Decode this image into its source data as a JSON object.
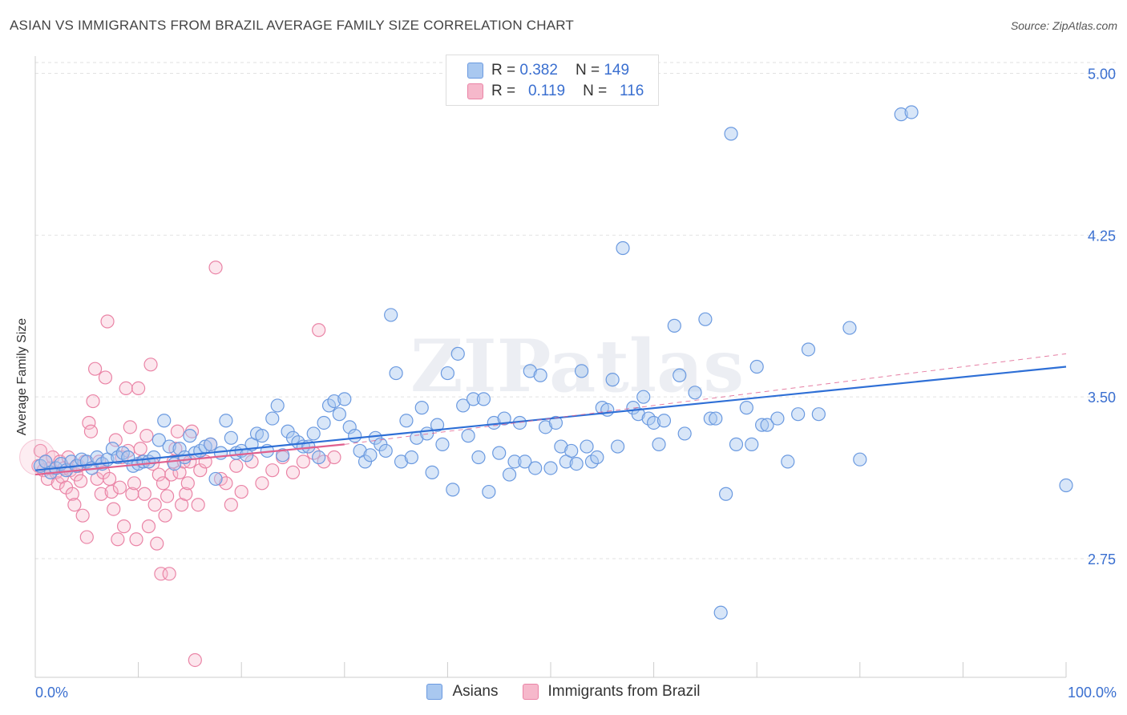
{
  "header": {
    "title": "ASIAN VS IMMIGRANTS FROM BRAZIL AVERAGE FAMILY SIZE CORRELATION CHART",
    "source": "Source: ZipAtlas.com"
  },
  "legend": {
    "rows": [
      {
        "r_label": "R =",
        "r_value": "0.382",
        "n_label": "N =",
        "n_value": "149"
      },
      {
        "r_label": "R =",
        "r_value": "0.119",
        "n_label": "N =",
        "n_value": "116"
      }
    ]
  },
  "colors": {
    "blue_fill": "#a9c8f0",
    "blue_stroke": "#6b9ae0",
    "blue_line": "#2e6fd6",
    "pink_fill": "#f6b8cb",
    "pink_stroke": "#ea84a6",
    "pink_line": "#e0608e",
    "axis_text": "#3a6fd0"
  },
  "chart_data": {
    "type": "scatter",
    "title": "ASIAN VS IMMIGRANTS FROM BRAZIL AVERAGE FAMILY SIZE CORRELATION CHART",
    "xlabel": "",
    "ylabel": "Average Family Size",
    "xlim": [
      0,
      100
    ],
    "ylim": [
      2.2,
      5.08
    ],
    "x_tick_labels": [
      "0.0%",
      "100.0%"
    ],
    "y_ticks": [
      2.75,
      3.5,
      4.25,
      5.0
    ],
    "y_tick_labels": [
      "2.75",
      "3.50",
      "4.25",
      "5.00"
    ],
    "grid": "horizontal dashed",
    "legend_position": "top-center",
    "watermark": "ZIPatlas",
    "series": [
      {
        "name": "Asians",
        "r": 0.382,
        "n": 149,
        "trend": {
          "x": [
            0,
            100
          ],
          "y": [
            3.16,
            3.64
          ]
        },
        "points": [
          [
            0.5,
            3.18
          ],
          [
            1,
            3.2
          ],
          [
            1.5,
            3.15
          ],
          [
            2,
            3.17
          ],
          [
            2.5,
            3.19
          ],
          [
            3,
            3.16
          ],
          [
            3.5,
            3.2
          ],
          [
            4,
            3.18
          ],
          [
            4.5,
            3.21
          ],
          [
            5,
            3.2
          ],
          [
            5.5,
            3.17
          ],
          [
            6,
            3.22
          ],
          [
            6.5,
            3.19
          ],
          [
            7,
            3.21
          ],
          [
            7.5,
            3.26
          ],
          [
            8,
            3.22
          ],
          [
            8.5,
            3.24
          ],
          [
            9,
            3.22
          ],
          [
            9.5,
            3.18
          ],
          [
            10,
            3.19
          ],
          [
            10.5,
            3.2
          ],
          [
            11,
            3.2
          ],
          [
            11.5,
            3.22
          ],
          [
            12,
            3.3
          ],
          [
            12.5,
            3.39
          ],
          [
            13,
            3.27
          ],
          [
            13.5,
            3.19
          ],
          [
            14,
            3.26
          ],
          [
            14.5,
            3.22
          ],
          [
            15,
            3.32
          ],
          [
            15.5,
            3.24
          ],
          [
            16,
            3.25
          ],
          [
            16.5,
            3.27
          ],
          [
            17,
            3.28
          ],
          [
            17.5,
            3.12
          ],
          [
            18,
            3.24
          ],
          [
            18.5,
            3.39
          ],
          [
            19,
            3.31
          ],
          [
            19.5,
            3.24
          ],
          [
            20,
            3.25
          ],
          [
            20.5,
            3.23
          ],
          [
            21,
            3.28
          ],
          [
            21.5,
            3.33
          ],
          [
            22,
            3.32
          ],
          [
            22.5,
            3.25
          ],
          [
            23,
            3.4
          ],
          [
            23.5,
            3.46
          ],
          [
            24,
            3.23
          ],
          [
            24.5,
            3.34
          ],
          [
            25,
            3.31
          ],
          [
            25.5,
            3.29
          ],
          [
            26,
            3.27
          ],
          [
            26.5,
            3.27
          ],
          [
            27,
            3.33
          ],
          [
            27.5,
            3.22
          ],
          [
            28,
            3.38
          ],
          [
            28.5,
            3.46
          ],
          [
            29,
            3.48
          ],
          [
            29.5,
            3.42
          ],
          [
            30,
            3.49
          ],
          [
            30.5,
            3.36
          ],
          [
            31,
            3.32
          ],
          [
            31.5,
            3.25
          ],
          [
            32,
            3.2
          ],
          [
            32.5,
            3.23
          ],
          [
            33,
            3.31
          ],
          [
            33.5,
            3.28
          ],
          [
            34,
            3.25
          ],
          [
            34.5,
            3.88
          ],
          [
            35,
            3.61
          ],
          [
            35.5,
            3.2
          ],
          [
            36,
            3.39
          ],
          [
            36.5,
            3.22
          ],
          [
            37,
            3.31
          ],
          [
            37.5,
            3.45
          ],
          [
            38,
            3.33
          ],
          [
            38.5,
            3.15
          ],
          [
            39,
            3.37
          ],
          [
            39.5,
            3.28
          ],
          [
            40,
            3.61
          ],
          [
            40.5,
            3.07
          ],
          [
            41,
            3.7
          ],
          [
            41.5,
            3.46
          ],
          [
            42,
            3.32
          ],
          [
            42.5,
            3.49
          ],
          [
            43,
            3.22
          ],
          [
            43.5,
            3.49
          ],
          [
            44,
            3.06
          ],
          [
            44.5,
            3.38
          ],
          [
            45,
            3.24
          ],
          [
            45.5,
            3.4
          ],
          [
            46,
            3.14
          ],
          [
            46.5,
            3.2
          ],
          [
            47,
            3.38
          ],
          [
            47.5,
            3.2
          ],
          [
            48,
            3.62
          ],
          [
            48.5,
            3.17
          ],
          [
            49,
            3.6
          ],
          [
            49.5,
            3.36
          ],
          [
            50,
            3.17
          ],
          [
            50.5,
            3.38
          ],
          [
            51,
            3.27
          ],
          [
            51.5,
            3.2
          ],
          [
            52,
            3.25
          ],
          [
            52.5,
            3.19
          ],
          [
            53,
            3.62
          ],
          [
            53.5,
            3.27
          ],
          [
            54,
            3.2
          ],
          [
            54.5,
            3.22
          ],
          [
            55,
            3.45
          ],
          [
            55.5,
            3.44
          ],
          [
            56,
            3.58
          ],
          [
            56.5,
            3.27
          ],
          [
            57,
            4.19
          ],
          [
            58,
            3.45
          ],
          [
            58.5,
            3.42
          ],
          [
            59,
            3.5
          ],
          [
            59.5,
            3.4
          ],
          [
            60,
            3.38
          ],
          [
            60.5,
            3.28
          ],
          [
            61,
            3.39
          ],
          [
            62,
            3.83
          ],
          [
            62.5,
            3.6
          ],
          [
            63,
            3.33
          ],
          [
            64,
            3.52
          ],
          [
            65,
            3.86
          ],
          [
            65.5,
            3.4
          ],
          [
            66,
            3.4
          ],
          [
            66.5,
            2.5
          ],
          [
            67,
            3.05
          ],
          [
            67.5,
            4.72
          ],
          [
            68,
            3.28
          ],
          [
            69,
            3.45
          ],
          [
            69.5,
            3.28
          ],
          [
            70,
            3.64
          ],
          [
            70.5,
            3.37
          ],
          [
            71,
            3.37
          ],
          [
            72,
            3.4
          ],
          [
            73,
            3.2
          ],
          [
            74,
            3.42
          ],
          [
            75,
            3.72
          ],
          [
            76,
            3.42
          ],
          [
            79,
            3.82
          ],
          [
            80,
            3.21
          ],
          [
            84,
            4.81
          ],
          [
            85,
            4.82
          ],
          [
            100,
            3.09
          ]
        ]
      },
      {
        "name": "Immigrants from Brazil",
        "r": 0.119,
        "n": 116,
        "trend": {
          "x": [
            0,
            30
          ],
          "y": [
            3.14,
            3.28
          ]
        },
        "trend_extension": {
          "x": [
            30,
            100
          ],
          "y": [
            3.28,
            3.7
          ]
        },
        "points": [
          [
            0.3,
            3.18
          ],
          [
            0.5,
            3.25
          ],
          [
            0.8,
            3.16
          ],
          [
            1,
            3.2
          ],
          [
            1.2,
            3.12
          ],
          [
            1.5,
            3.17
          ],
          [
            1.7,
            3.22
          ],
          [
            2,
            3.15
          ],
          [
            2.2,
            3.1
          ],
          [
            2.4,
            3.2
          ],
          [
            2.6,
            3.13
          ],
          [
            2.8,
            3.17
          ],
          [
            3,
            3.08
          ],
          [
            3.2,
            3.22
          ],
          [
            3.4,
            3.16
          ],
          [
            3.6,
            3.05
          ],
          [
            3.8,
            3.0
          ],
          [
            4,
            3.14
          ],
          [
            4.2,
            3.18
          ],
          [
            4.4,
            3.11
          ],
          [
            4.6,
            2.95
          ],
          [
            4.8,
            3.2
          ],
          [
            5,
            2.85
          ],
          [
            5.2,
            3.38
          ],
          [
            5.4,
            3.34
          ],
          [
            5.6,
            3.48
          ],
          [
            5.8,
            3.63
          ],
          [
            6,
            3.12
          ],
          [
            6.2,
            3.2
          ],
          [
            6.4,
            3.05
          ],
          [
            6.6,
            3.15
          ],
          [
            6.8,
            3.59
          ],
          [
            7,
            3.85
          ],
          [
            7.2,
            3.12
          ],
          [
            7.4,
            3.06
          ],
          [
            7.6,
            2.98
          ],
          [
            7.8,
            3.3
          ],
          [
            8,
            2.84
          ],
          [
            8.2,
            3.08
          ],
          [
            8.4,
            3.22
          ],
          [
            8.6,
            2.9
          ],
          [
            8.8,
            3.54
          ],
          [
            9,
            3.25
          ],
          [
            9.2,
            3.36
          ],
          [
            9.4,
            3.05
          ],
          [
            9.6,
            3.1
          ],
          [
            9.8,
            2.84
          ],
          [
            10,
            3.54
          ],
          [
            10.2,
            3.26
          ],
          [
            10.4,
            3.2
          ],
          [
            10.6,
            3.05
          ],
          [
            10.8,
            3.32
          ],
          [
            11,
            2.9
          ],
          [
            11.2,
            3.65
          ],
          [
            11.4,
            3.19
          ],
          [
            11.6,
            3.0
          ],
          [
            11.8,
            2.82
          ],
          [
            12,
            3.14
          ],
          [
            12.2,
            2.68
          ],
          [
            12.4,
            3.1
          ],
          [
            12.6,
            2.95
          ],
          [
            12.8,
            3.04
          ],
          [
            13,
            2.68
          ],
          [
            13.2,
            3.14
          ],
          [
            13.4,
            3.2
          ],
          [
            13.6,
            3.26
          ],
          [
            13.8,
            3.34
          ],
          [
            14,
            3.15
          ],
          [
            14.2,
            3.0
          ],
          [
            14.4,
            3.2
          ],
          [
            14.6,
            3.05
          ],
          [
            14.8,
            3.1
          ],
          [
            15,
            3.2
          ],
          [
            15.2,
            3.34
          ],
          [
            15.5,
            2.28
          ],
          [
            15.8,
            3.0
          ],
          [
            16,
            3.16
          ],
          [
            16.5,
            3.2
          ],
          [
            17,
            3.28
          ],
          [
            17.5,
            4.1
          ],
          [
            18,
            3.12
          ],
          [
            18.5,
            3.1
          ],
          [
            19,
            3.0
          ],
          [
            19.5,
            3.18
          ],
          [
            20,
            3.06
          ],
          [
            21,
            3.2
          ],
          [
            22,
            3.1
          ],
          [
            23,
            3.16
          ],
          [
            24,
            3.22
          ],
          [
            25,
            3.15
          ],
          [
            26,
            3.2
          ],
          [
            27,
            3.24
          ],
          [
            27.5,
            3.81
          ],
          [
            28,
            3.2
          ],
          [
            29,
            3.22
          ]
        ]
      }
    ]
  },
  "bottom_legend": [
    "Asians",
    "Immigrants from Brazil"
  ]
}
